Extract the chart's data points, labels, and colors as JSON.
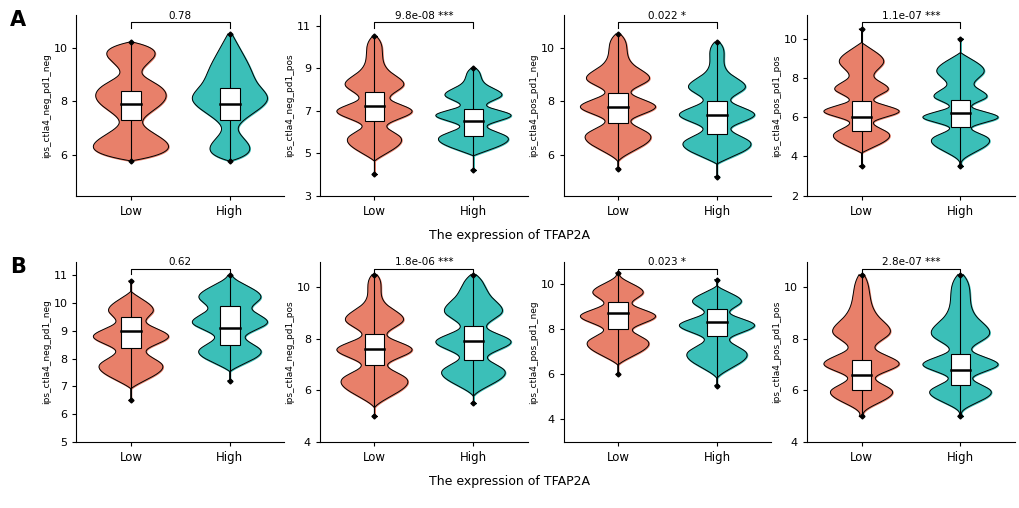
{
  "panel_A": {
    "plots": [
      {
        "ylabel": "ips_ctla4_neg_pd1_neg",
        "pvalue": "0.78",
        "stars": "",
        "ylim": [
          4.5,
          11.2
        ],
        "yticks": [
          6,
          8,
          10
        ],
        "low": {
          "nodes": [
            5.8,
            6.8,
            7.2,
            7.8,
            8.2,
            8.6,
            9.0,
            9.5,
            10.2
          ],
          "widths": [
            0.05,
            0.6,
            0.3,
            0.7,
            0.9,
            0.7,
            0.3,
            0.5,
            0.05
          ],
          "q1": 7.3,
          "median": 7.9,
          "q3": 8.4,
          "whislo": 5.8,
          "whishi": 10.2
        },
        "high": {
          "nodes": [
            5.8,
            6.5,
            7.0,
            7.6,
            8.1,
            8.6,
            9.2,
            9.8,
            10.5
          ],
          "widths": [
            0.05,
            0.4,
            0.2,
            0.6,
            0.9,
            0.7,
            0.5,
            0.3,
            0.05
          ],
          "q1": 7.3,
          "median": 7.9,
          "q3": 8.5,
          "whislo": 5.8,
          "whishi": 10.5
        }
      },
      {
        "ylabel": "ips_ctla4_neg_pd1_pos",
        "pvalue": "9.8e-08",
        "stars": "***",
        "ylim": [
          3.0,
          11.5
        ],
        "yticks": [
          3,
          5,
          7,
          9,
          11
        ],
        "low": {
          "nodes": [
            4.0,
            5.0,
            5.8,
            6.3,
            7.0,
            7.5,
            8.2,
            8.8,
            9.5,
            10.5
          ],
          "widths": [
            0.05,
            0.3,
            0.6,
            0.3,
            0.9,
            0.4,
            0.7,
            0.4,
            0.2,
            0.05
          ],
          "q1": 6.5,
          "median": 7.2,
          "q3": 7.9,
          "whislo": 4.0,
          "whishi": 10.5
        },
        "high": {
          "nodes": [
            4.2,
            5.2,
            5.8,
            6.3,
            6.8,
            7.2,
            7.7,
            8.2,
            8.7,
            9.0
          ],
          "widths": [
            0.05,
            0.4,
            0.7,
            0.3,
            0.8,
            0.3,
            0.6,
            0.3,
            0.15,
            0.05
          ],
          "q1": 5.8,
          "median": 6.5,
          "q3": 7.1,
          "whislo": 4.2,
          "whishi": 9.0
        }
      },
      {
        "ylabel": "ips_ctla4_pos_pd1_neg",
        "pvalue": "0.022",
        "stars": "*",
        "ylim": [
          4.5,
          11.2
        ],
        "yticks": [
          6,
          8,
          10
        ],
        "low": {
          "nodes": [
            5.5,
            6.2,
            6.8,
            7.3,
            7.8,
            8.3,
            8.8,
            9.3,
            10.0,
            10.5
          ],
          "widths": [
            0.05,
            0.4,
            0.7,
            0.3,
            0.85,
            0.3,
            0.7,
            0.4,
            0.2,
            0.05
          ],
          "q1": 7.2,
          "median": 7.8,
          "q3": 8.3,
          "whislo": 5.5,
          "whishi": 10.5
        },
        "high": {
          "nodes": [
            5.2,
            6.0,
            6.5,
            7.0,
            7.5,
            8.0,
            8.5,
            9.0,
            9.5,
            10.2
          ],
          "widths": [
            0.05,
            0.4,
            0.7,
            0.3,
            0.8,
            0.3,
            0.6,
            0.3,
            0.15,
            0.05
          ],
          "q1": 6.8,
          "median": 7.5,
          "q3": 8.0,
          "whislo": 5.2,
          "whishi": 10.2
        }
      },
      {
        "ylabel": "ips_ctla4_pos_pd1_pos",
        "pvalue": "1.1e-07",
        "stars": "***",
        "ylim": [
          2.0,
          11.2
        ],
        "yticks": [
          2,
          4,
          6,
          8,
          10
        ],
        "low": {
          "nodes": [
            3.5,
            4.5,
            5.2,
            5.8,
            6.3,
            6.8,
            7.4,
            8.0,
            8.8,
            9.5,
            10.5
          ],
          "widths": [
            0.05,
            0.3,
            0.6,
            0.3,
            0.85,
            0.3,
            0.6,
            0.3,
            0.5,
            0.2,
            0.05
          ],
          "q1": 5.3,
          "median": 6.0,
          "q3": 6.8,
          "whislo": 3.5,
          "whishi": 10.5
        },
        "high": {
          "nodes": [
            3.5,
            4.2,
            5.0,
            5.5,
            6.0,
            6.5,
            7.0,
            7.6,
            8.3,
            9.0,
            10.0
          ],
          "widths": [
            0.05,
            0.3,
            0.55,
            0.25,
            0.8,
            0.25,
            0.55,
            0.3,
            0.5,
            0.2,
            0.05
          ],
          "q1": 5.5,
          "median": 6.2,
          "q3": 6.9,
          "whislo": 3.5,
          "whishi": 10.0
        }
      }
    ]
  },
  "panel_B": {
    "plots": [
      {
        "ylabel": "ips_ctla4_neg_pd1_neg",
        "pvalue": "0.62",
        "stars": "",
        "ylim": [
          5.0,
          11.5
        ],
        "yticks": [
          5,
          6,
          7,
          8,
          9,
          10,
          11
        ],
        "low": {
          "nodes": [
            6.5,
            7.2,
            7.8,
            8.3,
            8.8,
            9.3,
            9.7,
            10.2,
            10.8
          ],
          "widths": [
            0.05,
            0.3,
            0.7,
            0.35,
            0.85,
            0.35,
            0.5,
            0.2,
            0.05
          ],
          "q1": 8.4,
          "median": 9.0,
          "q3": 9.5,
          "whislo": 6.5,
          "whishi": 10.8
        },
        "high": {
          "nodes": [
            7.2,
            7.8,
            8.3,
            8.8,
            9.3,
            9.8,
            10.2,
            10.7,
            11.0
          ],
          "widths": [
            0.05,
            0.3,
            0.7,
            0.35,
            0.85,
            0.5,
            0.7,
            0.3,
            0.05
          ],
          "q1": 8.5,
          "median": 9.1,
          "q3": 9.9,
          "whislo": 7.2,
          "whishi": 11.0
        }
      },
      {
        "ylabel": "ips_ctla4_neg_pd1_pos",
        "pvalue": "1.8e-06",
        "stars": "***",
        "ylim": [
          4.0,
          11.0
        ],
        "yticks": [
          4,
          6,
          8,
          10
        ],
        "low": {
          "nodes": [
            5.0,
            5.8,
            6.5,
            7.0,
            7.6,
            8.1,
            8.7,
            9.3,
            10.0,
            10.5
          ],
          "widths": [
            0.05,
            0.4,
            0.7,
            0.3,
            0.85,
            0.3,
            0.65,
            0.3,
            0.15,
            0.05
          ],
          "q1": 7.0,
          "median": 7.6,
          "q3": 8.2,
          "whislo": 5.0,
          "whishi": 10.5
        },
        "high": {
          "nodes": [
            5.5,
            6.2,
            6.8,
            7.3,
            7.9,
            8.4,
            9.0,
            9.6,
            10.2,
            10.5
          ],
          "widths": [
            0.05,
            0.35,
            0.65,
            0.3,
            0.8,
            0.3,
            0.6,
            0.4,
            0.2,
            0.05
          ],
          "q1": 7.2,
          "median": 7.9,
          "q3": 8.5,
          "whislo": 5.5,
          "whishi": 10.5
        }
      },
      {
        "ylabel": "ips_ctla4_pos_pd1_neg",
        "pvalue": "0.023",
        "stars": "*",
        "ylim": [
          3.0,
          11.0
        ],
        "yticks": [
          4,
          6,
          8,
          10
        ],
        "low": {
          "nodes": [
            6.0,
            6.8,
            7.5,
            8.0,
            8.6,
            9.1,
            9.6,
            10.1,
            10.5
          ],
          "widths": [
            0.05,
            0.35,
            0.7,
            0.35,
            0.9,
            0.35,
            0.6,
            0.25,
            0.05
          ],
          "q1": 8.0,
          "median": 8.7,
          "q3": 9.2,
          "whislo": 6.0,
          "whishi": 10.5
        },
        "high": {
          "nodes": [
            5.5,
            6.3,
            7.0,
            7.6,
            8.2,
            8.7,
            9.2,
            9.7,
            10.2
          ],
          "widths": [
            0.05,
            0.35,
            0.65,
            0.3,
            0.85,
            0.3,
            0.55,
            0.2,
            0.05
          ],
          "q1": 7.7,
          "median": 8.3,
          "q3": 8.9,
          "whislo": 5.5,
          "whishi": 10.2
        }
      },
      {
        "ylabel": "ips_ctla4_pos_pd1_pos",
        "pvalue": "2.8e-07",
        "stars": "***",
        "ylim": [
          4.0,
          11.0
        ],
        "yticks": [
          4,
          6,
          8,
          10
        ],
        "low": {
          "nodes": [
            5.0,
            5.5,
            6.0,
            6.5,
            7.0,
            7.6,
            8.2,
            8.8,
            9.5,
            10.5
          ],
          "widths": [
            0.05,
            0.35,
            0.65,
            0.3,
            0.8,
            0.3,
            0.6,
            0.4,
            0.2,
            0.05
          ],
          "q1": 6.0,
          "median": 6.6,
          "q3": 7.2,
          "whislo": 5.0,
          "whishi": 10.5
        },
        "high": {
          "nodes": [
            5.0,
            5.5,
            6.0,
            6.5,
            7.0,
            7.5,
            8.1,
            8.8,
            9.5,
            10.5
          ],
          "widths": [
            0.05,
            0.3,
            0.6,
            0.25,
            0.75,
            0.25,
            0.55,
            0.35,
            0.2,
            0.05
          ],
          "q1": 6.2,
          "median": 6.8,
          "q3": 7.4,
          "whislo": 5.0,
          "whishi": 10.5
        }
      }
    ]
  },
  "color_low": "#E8806A",
  "color_high": "#3BBFB8",
  "xlabel": "The expression of TFAP2A",
  "label_A": "A",
  "label_B": "B"
}
